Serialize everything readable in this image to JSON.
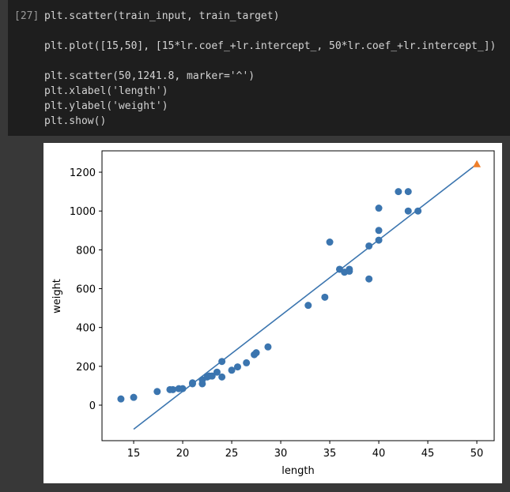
{
  "cell": {
    "prompt": "[27]",
    "lines": [
      "plt.scatter(train_input, train_target)",
      "plt.plot([15,50], [15*lr.coef_+lr.intercept_, 50*lr.coef_+lr.intercept_])",
      "plt.scatter(50,1241.8, marker='^')",
      "plt.xlabel('length')",
      "plt.ylabel('weight')",
      "plt.show()"
    ]
  },
  "chart_data": {
    "type": "scatter",
    "xlabel": "length",
    "ylabel": "weight",
    "xlim": [
      11.77,
      51.77
    ],
    "ylim": [
      -183,
      1310
    ],
    "xticks": [
      15,
      20,
      25,
      30,
      35,
      40,
      45,
      50
    ],
    "yticks": [
      0,
      200,
      400,
      600,
      800,
      1000,
      1200
    ],
    "series": [
      {
        "type": "scatter",
        "marker": "circle",
        "color": "#3b75af",
        "x": [
          13.7,
          15,
          17.4,
          18.7,
          19,
          19.6,
          20,
          21,
          21,
          22,
          22,
          22.5,
          22.7,
          23,
          23.5,
          24,
          24,
          25,
          25.6,
          26.5,
          27.3,
          27.5,
          28.7,
          32.8,
          34.5,
          35,
          36,
          36.5,
          37,
          37,
          39,
          39,
          40,
          40,
          40,
          42,
          43,
          43,
          44
        ],
        "values": [
          32,
          40,
          70,
          80,
          80,
          85,
          85,
          115,
          110,
          110,
          130,
          145,
          150,
          150,
          170,
          145,
          225,
          180,
          197,
          218,
          260,
          270,
          300,
          514,
          556,
          840,
          700,
          685,
          700,
          690,
          650,
          820,
          850,
          900,
          1015,
          1100,
          1100,
          1000,
          1000
        ]
      },
      {
        "type": "line",
        "color": "#3b75af",
        "x": [
          15,
          50
        ],
        "values": [
          -123.9,
          1241.8
        ]
      },
      {
        "type": "scatter",
        "marker": "triangle",
        "color": "#ef7f2a",
        "x": [
          50
        ],
        "values": [
          1241.8
        ]
      }
    ]
  }
}
